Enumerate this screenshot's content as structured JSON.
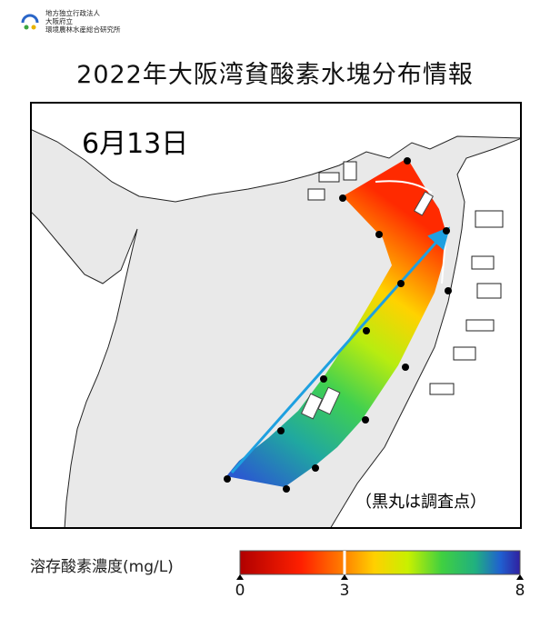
{
  "header": {
    "org_line1": "地方独立行政法人",
    "org_line2": "大阪府立",
    "org_line3": "環境農林水産総合研究所"
  },
  "title": "2022年大阪湾貧酸素水塊分布情報",
  "map": {
    "date": "6月13日",
    "note": "（黒丸は調査点）",
    "survey_points": 15
  },
  "legend": {
    "label": "溶存酸素濃度(mg/L)",
    "min": "0",
    "mid": "3",
    "max": "8",
    "colors": [
      "#b00000",
      "#ff2000",
      "#ff8000",
      "#ffd000",
      "#c8f000",
      "#40d040",
      "#20b080",
      "#2060d0",
      "#3020a0"
    ]
  }
}
